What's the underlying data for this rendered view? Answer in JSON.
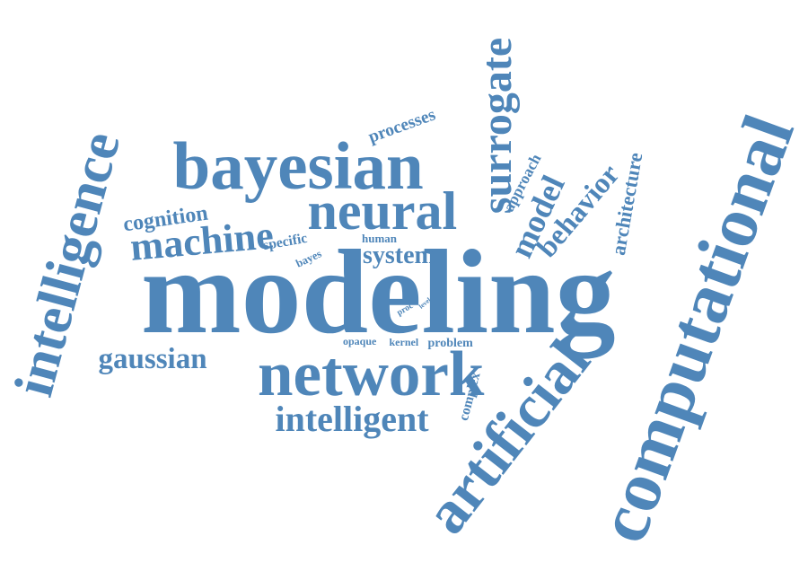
{
  "word_color": "#4f86b9",
  "background": "#ffffff",
  "words": [
    {
      "id": "modeling",
      "text": "modeling"
    },
    {
      "id": "computational",
      "text": "computational"
    },
    {
      "id": "network",
      "text": "network"
    },
    {
      "id": "bayesian",
      "text": "bayesian"
    },
    {
      "id": "intelligence",
      "text": "intelligence"
    },
    {
      "id": "artificial",
      "text": "artificial"
    },
    {
      "id": "surrogate",
      "text": "surrogate"
    },
    {
      "id": "neural",
      "text": "neural"
    },
    {
      "id": "machine",
      "text": "machine"
    },
    {
      "id": "intelligent",
      "text": "intelligent"
    },
    {
      "id": "gaussian",
      "text": "gaussian"
    },
    {
      "id": "behavior",
      "text": "behavior"
    },
    {
      "id": "model",
      "text": "model"
    },
    {
      "id": "cognition",
      "text": "cognition"
    },
    {
      "id": "system",
      "text": "system"
    },
    {
      "id": "processes",
      "text": "processes"
    },
    {
      "id": "architecture",
      "text": "architecture"
    },
    {
      "id": "approach",
      "text": "approach"
    },
    {
      "id": "specific",
      "text": "specific"
    },
    {
      "id": "bayes",
      "text": "bayes"
    },
    {
      "id": "human",
      "text": "human"
    },
    {
      "id": "opaque",
      "text": "opaque"
    },
    {
      "id": "kernel",
      "text": "kernel"
    },
    {
      "id": "problem",
      "text": "problem"
    },
    {
      "id": "complex",
      "text": "complex"
    },
    {
      "id": "proc",
      "text": "proc"
    },
    {
      "id": "level",
      "text": "level"
    }
  ]
}
